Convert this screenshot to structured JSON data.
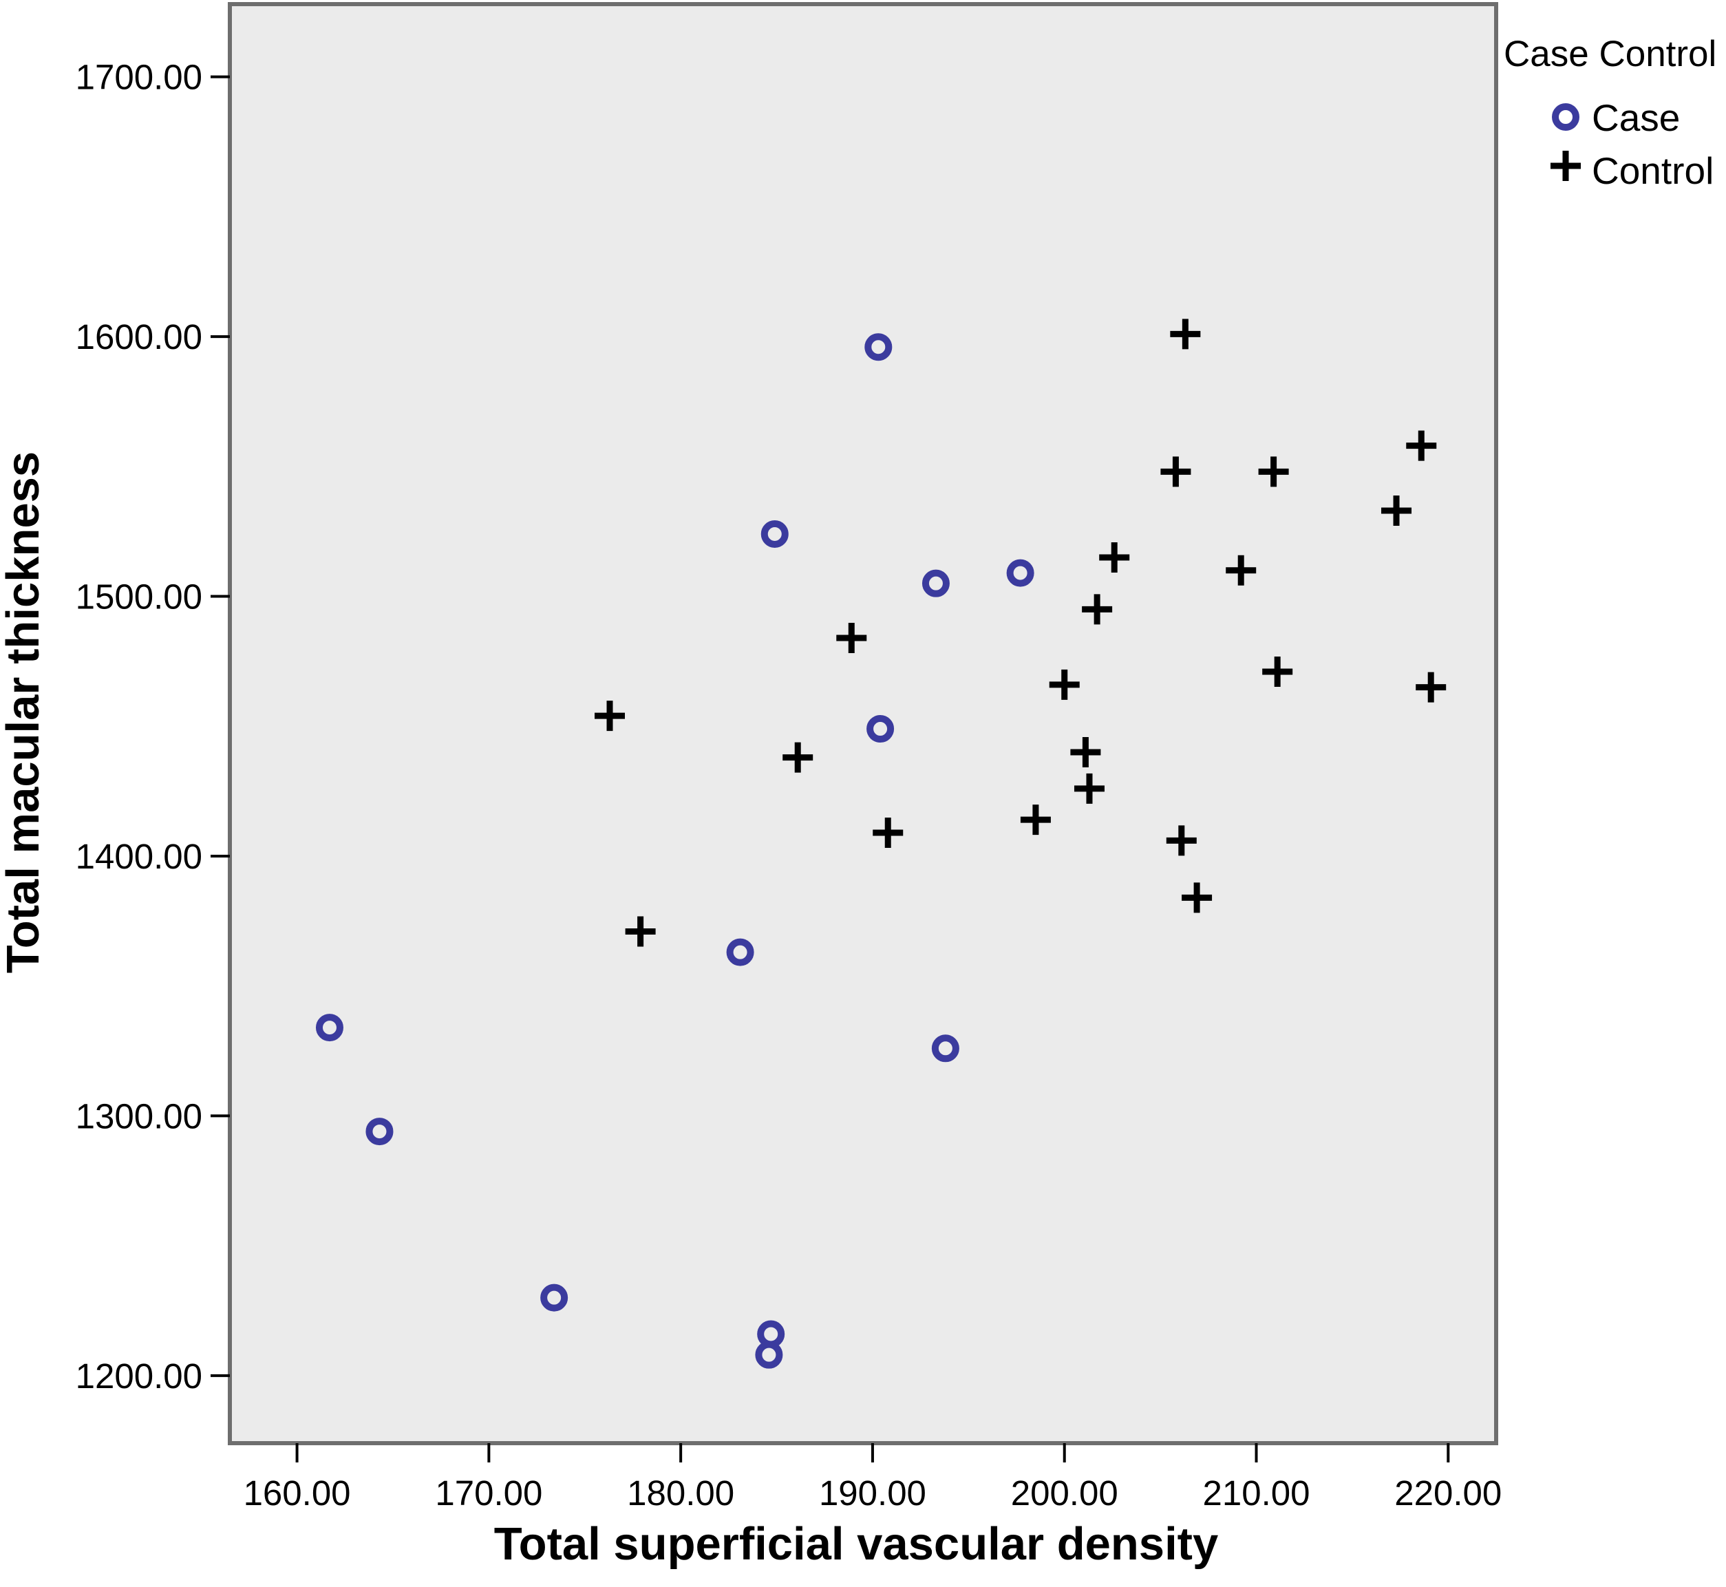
{
  "chart_data": {
    "type": "scatter",
    "xlabel": "Total superficial vascular density",
    "ylabel": "Total macular thickness",
    "xlim": [
      156.5,
      222.5
    ],
    "ylim": [
      1174,
      1728
    ],
    "x_ticks": [
      160,
      170,
      180,
      190,
      200,
      210,
      220
    ],
    "y_ticks": [
      1200,
      1300,
      1400,
      1500,
      1600,
      1700
    ],
    "x_tick_labels": [
      "160.00",
      "170.00",
      "180.00",
      "190.00",
      "200.00",
      "210.00",
      "220.00"
    ],
    "y_tick_labels": [
      "1200.00",
      "1300.00",
      "1400.00",
      "1500.00",
      "1600.00",
      "1700.00"
    ],
    "grid": false,
    "plot_background": "#ebebeb",
    "legend": {
      "title": "Case Control",
      "placement": "right"
    },
    "series": [
      {
        "name": "Case",
        "marker": "circle",
        "color": "#3b3b9e",
        "points": [
          {
            "x": 190.3,
            "y": 1596
          },
          {
            "x": 184.9,
            "y": 1524
          },
          {
            "x": 193.3,
            "y": 1505
          },
          {
            "x": 197.7,
            "y": 1509
          },
          {
            "x": 190.4,
            "y": 1449
          },
          {
            "x": 183.1,
            "y": 1363
          },
          {
            "x": 161.7,
            "y": 1334
          },
          {
            "x": 193.8,
            "y": 1326
          },
          {
            "x": 164.3,
            "y": 1294
          },
          {
            "x": 173.4,
            "y": 1230
          },
          {
            "x": 184.7,
            "y": 1216
          },
          {
            "x": 184.6,
            "y": 1208
          }
        ]
      },
      {
        "name": "Control",
        "marker": "plus",
        "color": "#000000",
        "points": [
          {
            "x": 206.3,
            "y": 1601
          },
          {
            "x": 218.6,
            "y": 1558
          },
          {
            "x": 205.8,
            "y": 1548
          },
          {
            "x": 210.9,
            "y": 1548
          },
          {
            "x": 217.3,
            "y": 1533
          },
          {
            "x": 202.6,
            "y": 1515
          },
          {
            "x": 209.2,
            "y": 1510
          },
          {
            "x": 201.7,
            "y": 1495
          },
          {
            "x": 188.9,
            "y": 1484
          },
          {
            "x": 211.1,
            "y": 1471
          },
          {
            "x": 200.0,
            "y": 1466
          },
          {
            "x": 219.1,
            "y": 1465
          },
          {
            "x": 176.3,
            "y": 1454
          },
          {
            "x": 201.1,
            "y": 1440
          },
          {
            "x": 186.1,
            "y": 1438
          },
          {
            "x": 201.3,
            "y": 1426
          },
          {
            "x": 198.5,
            "y": 1414
          },
          {
            "x": 190.8,
            "y": 1409
          },
          {
            "x": 206.1,
            "y": 1406
          },
          {
            "x": 206.9,
            "y": 1384
          },
          {
            "x": 177.9,
            "y": 1371
          }
        ]
      }
    ]
  }
}
